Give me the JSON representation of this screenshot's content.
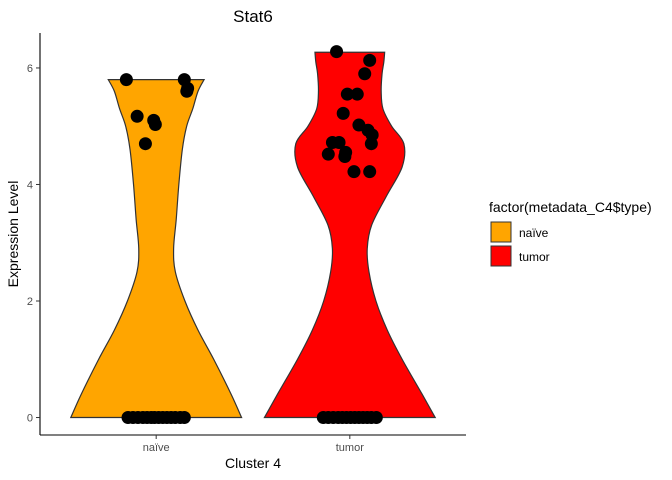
{
  "chart_data": {
    "type": "violin",
    "title": "Stat6",
    "xlabel": "Cluster 4",
    "ylabel": "Expression Level",
    "categories": [
      "naïve",
      "tumor"
    ],
    "ylim": [
      -0.3,
      6.6
    ],
    "yticks": [
      0,
      2,
      4,
      6
    ],
    "grid": false,
    "legend": {
      "title": "factor(metadata_C4$type)",
      "position": "right",
      "entries": [
        {
          "label": "naïve",
          "color": "#FFA500"
        },
        {
          "label": "tumor",
          "color": "#FF0000"
        }
      ]
    },
    "series": [
      {
        "category": "naïve",
        "color": "#FFA500",
        "density": [
          [
            0,
            0.98
          ],
          [
            0.4,
            0.86
          ],
          [
            1.0,
            0.66
          ],
          [
            1.5,
            0.48
          ],
          [
            2.0,
            0.33
          ],
          [
            2.5,
            0.22
          ],
          [
            2.9,
            0.2
          ],
          [
            3.4,
            0.23
          ],
          [
            4.0,
            0.26
          ],
          [
            4.6,
            0.3
          ],
          [
            5.0,
            0.35
          ],
          [
            5.3,
            0.42
          ],
          [
            5.6,
            0.48
          ],
          [
            5.8,
            0.55
          ]
        ],
        "points": [
          {
            "x": -0.34,
            "y": 0
          },
          {
            "x": -0.28,
            "y": 0
          },
          {
            "x": -0.22,
            "y": 0
          },
          {
            "x": -0.16,
            "y": 0
          },
          {
            "x": -0.11,
            "y": 0
          },
          {
            "x": -0.06,
            "y": 0
          },
          {
            "x": -0.02,
            "y": 0
          },
          {
            "x": 0.03,
            "y": 0
          },
          {
            "x": 0.08,
            "y": 0
          },
          {
            "x": 0.13,
            "y": 0
          },
          {
            "x": 0.18,
            "y": 0
          },
          {
            "x": 0.23,
            "y": 0
          },
          {
            "x": 0.29,
            "y": 0
          },
          {
            "x": 0.34,
            "y": 0
          },
          {
            "x": -0.36,
            "y": 5.8
          },
          {
            "x": 0.34,
            "y": 5.8
          },
          {
            "x": 0.38,
            "y": 5.65
          },
          {
            "x": 0.37,
            "y": 5.6
          },
          {
            "x": -0.23,
            "y": 5.17
          },
          {
            "x": -0.03,
            "y": 5.1
          },
          {
            "x": -0.01,
            "y": 5.03
          },
          {
            "x": -0.13,
            "y": 4.7
          }
        ]
      },
      {
        "category": "tumor",
        "color": "#FF0000",
        "density": [
          [
            0,
            0.98
          ],
          [
            0.4,
            0.83
          ],
          [
            1.0,
            0.6
          ],
          [
            1.5,
            0.43
          ],
          [
            2.0,
            0.3
          ],
          [
            2.5,
            0.22
          ],
          [
            2.9,
            0.2
          ],
          [
            3.3,
            0.25
          ],
          [
            3.8,
            0.42
          ],
          [
            4.3,
            0.6
          ],
          [
            4.7,
            0.62
          ],
          [
            5.0,
            0.48
          ],
          [
            5.3,
            0.38
          ],
          [
            5.6,
            0.36
          ],
          [
            5.9,
            0.37
          ],
          [
            6.1,
            0.39
          ],
          [
            6.27,
            0.4
          ]
        ],
        "points": [
          {
            "x": -0.32,
            "y": 0
          },
          {
            "x": -0.26,
            "y": 0
          },
          {
            "x": -0.2,
            "y": 0
          },
          {
            "x": -0.14,
            "y": 0
          },
          {
            "x": -0.09,
            "y": 0
          },
          {
            "x": -0.04,
            "y": 0
          },
          {
            "x": 0.01,
            "y": 0
          },
          {
            "x": 0.06,
            "y": 0
          },
          {
            "x": 0.11,
            "y": 0
          },
          {
            "x": 0.16,
            "y": 0
          },
          {
            "x": 0.21,
            "y": 0
          },
          {
            "x": 0.26,
            "y": 0
          },
          {
            "x": 0.32,
            "y": 0
          },
          {
            "x": -0.16,
            "y": 6.28
          },
          {
            "x": 0.24,
            "y": 6.13
          },
          {
            "x": 0.18,
            "y": 5.9
          },
          {
            "x": -0.03,
            "y": 5.55
          },
          {
            "x": 0.09,
            "y": 5.55
          },
          {
            "x": -0.08,
            "y": 5.22
          },
          {
            "x": 0.11,
            "y": 5.02
          },
          {
            "x": 0.22,
            "y": 4.93
          },
          {
            "x": 0.27,
            "y": 4.85
          },
          {
            "x": -0.21,
            "y": 4.72
          },
          {
            "x": -0.13,
            "y": 4.72
          },
          {
            "x": 0.26,
            "y": 4.7
          },
          {
            "x": -0.26,
            "y": 4.52
          },
          {
            "x": -0.05,
            "y": 4.55
          },
          {
            "x": -0.06,
            "y": 4.48
          },
          {
            "x": 0.05,
            "y": 4.22
          },
          {
            "x": 0.24,
            "y": 4.22
          }
        ]
      }
    ]
  }
}
